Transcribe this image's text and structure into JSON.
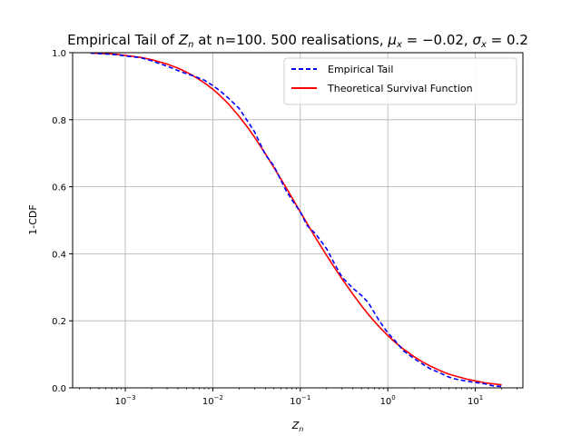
{
  "chart_data": {
    "type": "line",
    "title_prefix": "Empirical Tail of ",
    "title_var": "Z",
    "title_var_sub": "n",
    "title_mid": " at n=100. 500 realisations, ",
    "title_mu": "μ",
    "title_mu_sub": "x",
    "title_mu_val": " = −0.02, ",
    "title_sigma": "σ",
    "title_sigma_sub": "x",
    "title_sigma_val": " = 0.2",
    "xlabel_var": "Z",
    "xlabel_sub": "n",
    "ylabel": "1-CDF",
    "xscale": "log",
    "xlim": [
      0.00025,
      35
    ],
    "ylim": [
      0.0,
      1.0
    ],
    "x_ticks": [
      {
        "value": 0.001,
        "base": "10",
        "exp": "−3"
      },
      {
        "value": 0.01,
        "base": "10",
        "exp": "−2"
      },
      {
        "value": 0.1,
        "base": "10",
        "exp": "−1"
      },
      {
        "value": 1,
        "base": "10",
        "exp": "0"
      },
      {
        "value": 10,
        "base": "10",
        "exp": "1"
      }
    ],
    "y_ticks": [
      {
        "value": 0.0,
        "label": "0.0"
      },
      {
        "value": 0.2,
        "label": "0.2"
      },
      {
        "value": 0.4,
        "label": "0.4"
      },
      {
        "value": 0.6,
        "label": "0.6"
      },
      {
        "value": 0.8,
        "label": "0.8"
      },
      {
        "value": 1.0,
        "label": "1.0"
      }
    ],
    "grid": true,
    "legend_position": "top-right",
    "series": [
      {
        "name": "Empirical Tail",
        "color": "#0000ff",
        "style": "dashed",
        "x": [
          0.0004,
          0.0006,
          0.0008,
          0.001,
          0.0015,
          0.002,
          0.003,
          0.004,
          0.005,
          0.006,
          0.008,
          0.01,
          0.012,
          0.015,
          0.02,
          0.025,
          0.03,
          0.04,
          0.05,
          0.06,
          0.07,
          0.08,
          0.1,
          0.12,
          0.15,
          0.2,
          0.25,
          0.3,
          0.4,
          0.5,
          0.6,
          0.7,
          0.8,
          1.0,
          1.2,
          1.5,
          2.0,
          2.5,
          3.0,
          4.0,
          5.0,
          6.0,
          8.0,
          10.0,
          13.0,
          16.0,
          20.0
        ],
        "y": [
          0.999,
          0.996,
          0.994,
          0.99,
          0.985,
          0.976,
          0.96,
          0.947,
          0.937,
          0.931,
          0.918,
          0.902,
          0.887,
          0.865,
          0.834,
          0.795,
          0.764,
          0.695,
          0.662,
          0.619,
          0.585,
          0.561,
          0.525,
          0.484,
          0.459,
          0.415,
          0.367,
          0.33,
          0.297,
          0.276,
          0.254,
          0.225,
          0.2,
          0.164,
          0.142,
          0.111,
          0.087,
          0.071,
          0.058,
          0.044,
          0.032,
          0.026,
          0.02,
          0.016,
          0.012,
          0.006,
          0.004
        ]
      },
      {
        "name": "Theoretical Survival Function",
        "color": "#ff0000",
        "style": "solid",
        "x": [
          0.0004,
          0.0006,
          0.0008,
          0.001,
          0.0015,
          0.002,
          0.003,
          0.004,
          0.005,
          0.006,
          0.008,
          0.01,
          0.012,
          0.015,
          0.02,
          0.025,
          0.03,
          0.04,
          0.05,
          0.06,
          0.07,
          0.08,
          0.1,
          0.12,
          0.15,
          0.2,
          0.25,
          0.3,
          0.4,
          0.5,
          0.6,
          0.7,
          0.8,
          1.0,
          1.2,
          1.5,
          2.0,
          2.5,
          3.0,
          4.0,
          5.0,
          6.0,
          8.0,
          10.0,
          13.0,
          16.0,
          20.0
        ],
        "y": [
          0.999,
          0.997,
          0.995,
          0.992,
          0.986,
          0.979,
          0.966,
          0.954,
          0.942,
          0.931,
          0.91,
          0.891,
          0.873,
          0.848,
          0.81,
          0.777,
          0.748,
          0.698,
          0.657,
          0.623,
          0.594,
          0.568,
          0.525,
          0.49,
          0.447,
          0.395,
          0.356,
          0.325,
          0.279,
          0.245,
          0.219,
          0.199,
          0.182,
          0.156,
          0.137,
          0.116,
          0.093,
          0.077,
          0.066,
          0.051,
          0.041,
          0.035,
          0.026,
          0.021,
          0.015,
          0.012,
          0.009
        ]
      }
    ]
  }
}
